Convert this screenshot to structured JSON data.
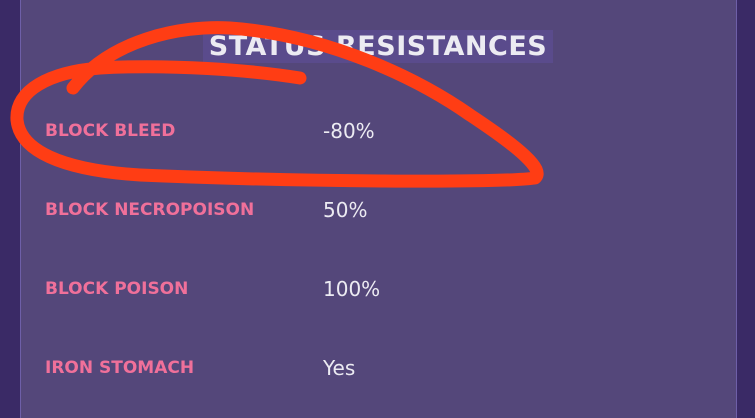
{
  "panel": {
    "title": "STATUS RESISTANCES",
    "rows": [
      {
        "label": "BLOCK BLEED",
        "value": "-80%"
      },
      {
        "label": "BLOCK NECROPOISON",
        "value": "50%"
      },
      {
        "label": "BLOCK POISON",
        "value": "100%"
      },
      {
        "label": "IRON STOMACH",
        "value": "Yes"
      }
    ]
  },
  "colors": {
    "background": "#54477a",
    "label": "#f0709a",
    "value": "#ecebf2",
    "annotation": "#ff3d14"
  }
}
